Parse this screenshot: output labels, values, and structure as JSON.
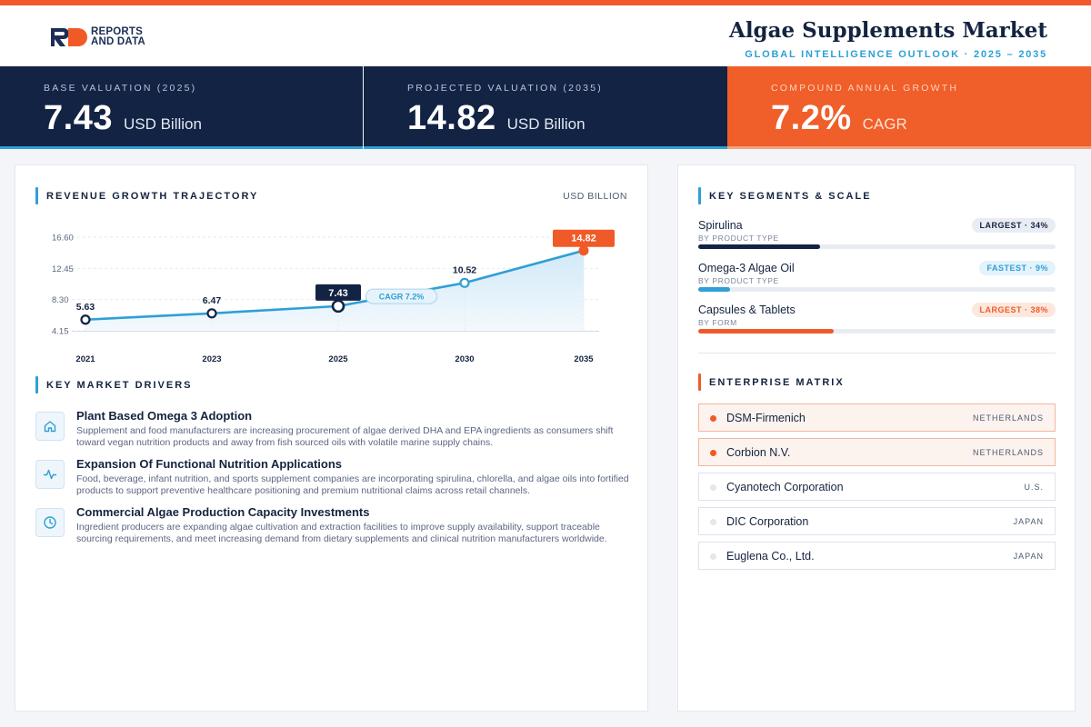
{
  "brand": {
    "logo_line1": "REPORTS",
    "logo_line2": "AND DATA"
  },
  "header": {
    "title": "Algae Supplements Market",
    "subtitle": "GLOBAL INTELLIGENCE OUTLOOK  ·  2025 – 2035"
  },
  "kpis": [
    {
      "label": "BASE VALUATION (2025)",
      "value": "7.43",
      "unit": "USD Billion"
    },
    {
      "label": "PROJECTED VALUATION (2035)",
      "value": "14.82",
      "unit": "USD Billion"
    },
    {
      "label": "COMPOUND ANNUAL GROWTH",
      "value": "7.2%",
      "unit": "CAGR"
    }
  ],
  "trajectory": {
    "title": "REVENUE GROWTH TRAJECTORY",
    "unit": "USD BILLION",
    "cagr_label": "CAGR 7.2%"
  },
  "chart_data": {
    "type": "area",
    "x": [
      "2021",
      "2023",
      "2025",
      "2030",
      "2035"
    ],
    "values": [
      5.63,
      6.47,
      7.43,
      10.52,
      14.82
    ],
    "value_labels": [
      "5.63",
      "6.47",
      "7.43",
      "10.52",
      "14.82"
    ],
    "y_ticks": [
      "16.60",
      "12.45",
      "8.30",
      "4.15"
    ],
    "y_tick_values": [
      16.6,
      12.45,
      8.3,
      4.15
    ],
    "ylim": [
      4.15,
      16.6
    ],
    "highlight_index": 2,
    "final_index": 4,
    "grid": true,
    "colors": {
      "line": "#2f9fd6",
      "highlight": "#132344",
      "final": "#f05a28"
    }
  },
  "drivers": {
    "title": "KEY MARKET DRIVERS",
    "items": [
      {
        "icon": "home-icon",
        "title": "Plant Based Omega 3 Adoption",
        "desc": "Supplement and food manufacturers are increasing procurement of algae derived DHA and EPA ingredients as consumers shift toward vegan nutrition products and away from fish sourced oils with volatile marine supply chains."
      },
      {
        "icon": "activity-icon",
        "title": "Expansion Of Functional Nutrition Applications",
        "desc": "Food, beverage, infant nutrition, and sports supplement companies are incorporating spirulina, chlorella, and algae oils into fortified products to support preventive healthcare positioning and premium nutritional claims across retail channels."
      },
      {
        "icon": "clock-icon",
        "title": "Commercial Algae Production Capacity Investments",
        "desc": "Ingredient producers are expanding algae cultivation and extraction facilities to improve supply availability, support traceable sourcing requirements, and meet increasing demand from dietary supplements and clinical nutrition manufacturers worldwide."
      }
    ]
  },
  "segments": {
    "title": "KEY SEGMENTS & SCALE",
    "items": [
      {
        "name": "Spirulina",
        "sub": "BY PRODUCT TYPE",
        "badge": "LARGEST · 34%",
        "share": 0.34,
        "style": "gray",
        "color": "#132344"
      },
      {
        "name": "Omega-3 Algae Oil",
        "sub": "BY PRODUCT TYPE",
        "badge": "FASTEST · 9%",
        "share": 0.09,
        "style": "blue",
        "color": "#2f9fd6"
      },
      {
        "name": "Capsules & Tablets",
        "sub": "BY FORM",
        "badge": "LARGEST · 38%",
        "share": 0.38,
        "style": "orange",
        "color": "#f05a28"
      }
    ]
  },
  "enterprise": {
    "title": "ENTERPRISE MATRIX",
    "items": [
      {
        "name": "DSM-Firmenich",
        "country": "NETHERLANDS",
        "highlight": true
      },
      {
        "name": "Corbion N.V.",
        "country": "NETHERLANDS",
        "highlight": true
      },
      {
        "name": "Cyanotech Corporation",
        "country": "U.S.",
        "highlight": false
      },
      {
        "name": "DIC Corporation",
        "country": "JAPAN",
        "highlight": false
      },
      {
        "name": "Euglena Co., Ltd.",
        "country": "JAPAN",
        "highlight": false
      }
    ]
  }
}
